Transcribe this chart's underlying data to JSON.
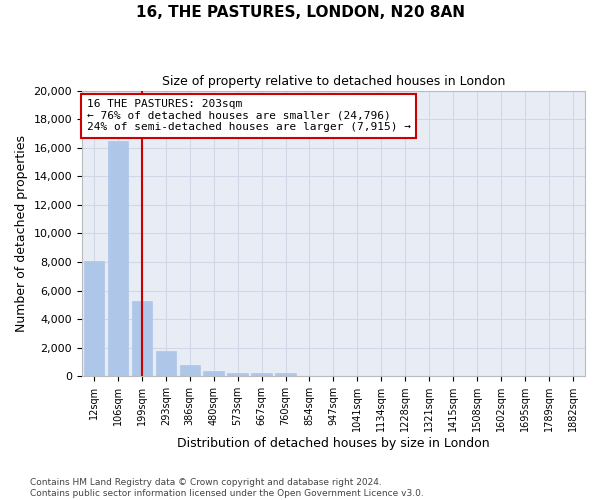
{
  "title_line1": "16, THE PASTURES, LONDON, N20 8AN",
  "title_line2": "Size of property relative to detached houses in London",
  "xlabel": "Distribution of detached houses by size in London",
  "ylabel": "Number of detached properties",
  "categories": [
    "12sqm",
    "106sqm",
    "199sqm",
    "293sqm",
    "386sqm",
    "480sqm",
    "573sqm",
    "667sqm",
    "760sqm",
    "854sqm",
    "947sqm",
    "1041sqm",
    "1134sqm",
    "1228sqm",
    "1321sqm",
    "1415sqm",
    "1508sqm",
    "1602sqm",
    "1695sqm",
    "1789sqm",
    "1882sqm"
  ],
  "values": [
    8100,
    16500,
    5300,
    1750,
    780,
    340,
    250,
    230,
    200,
    0,
    0,
    0,
    0,
    0,
    0,
    0,
    0,
    0,
    0,
    0,
    0
  ],
  "bar_color": "#aec6e8",
  "bar_edge_color": "#aec6e8",
  "grid_color": "#d0d8e8",
  "background_color": "#e8edf5",
  "property_line_x": 2,
  "property_line_color": "#cc0000",
  "annotation_line1": "16 THE PASTURES: 203sqm",
  "annotation_line2": "← 76% of detached houses are smaller (24,796)",
  "annotation_line3": "24% of semi-detached houses are larger (7,915) →",
  "annotation_box_color": "#cc0000",
  "ylim": [
    0,
    20000
  ],
  "yticks": [
    0,
    2000,
    4000,
    6000,
    8000,
    10000,
    12000,
    14000,
    16000,
    18000,
    20000
  ],
  "footer_line1": "Contains HM Land Registry data © Crown copyright and database right 2024.",
  "footer_line2": "Contains public sector information licensed under the Open Government Licence v3.0."
}
